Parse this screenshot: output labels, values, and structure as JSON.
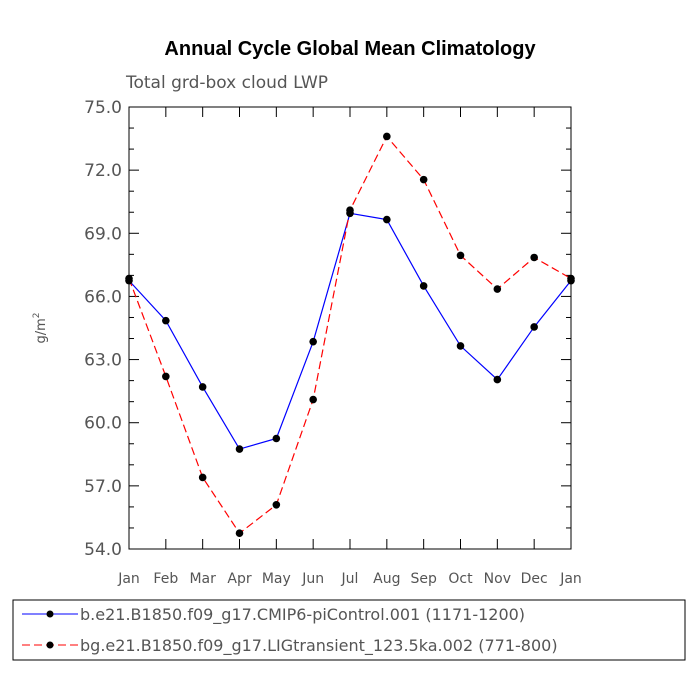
{
  "chart_data": {
    "type": "line",
    "title": "Annual Cycle Global Mean Climatology",
    "subtitle": "Total grd-box cloud LWP",
    "ylabel_base": "g/m",
    "ylabel_exp": "2",
    "ylim": [
      54.0,
      75.0
    ],
    "yticks": [
      "54.0",
      "57.0",
      "60.0",
      "63.0",
      "66.0",
      "69.0",
      "72.0",
      "75.0"
    ],
    "categories": [
      "Jan",
      "Feb",
      "Mar",
      "Apr",
      "May",
      "Jun",
      "Jul",
      "Aug",
      "Sep",
      "Oct",
      "Nov",
      "Dec",
      "Jan"
    ],
    "series": [
      {
        "name": "b.e21.B1850.f09_g17.CMIP6-piControl.001 (1171-1200)",
        "color": "#0000ff",
        "dash": "solid",
        "values": [
          66.75,
          64.85,
          61.7,
          58.75,
          59.25,
          63.85,
          69.95,
          69.65,
          66.5,
          63.65,
          62.05,
          64.55,
          66.75
        ]
      },
      {
        "name": "bg.e21.B1850.f09_g17.LIGtransient_123.5ka.002 (771-800)",
        "color": "#ff0000",
        "dash": "dashed",
        "values": [
          66.85,
          62.2,
          57.4,
          54.75,
          56.1,
          61.1,
          70.1,
          73.6,
          71.55,
          67.95,
          66.35,
          67.85,
          66.85
        ]
      }
    ]
  }
}
